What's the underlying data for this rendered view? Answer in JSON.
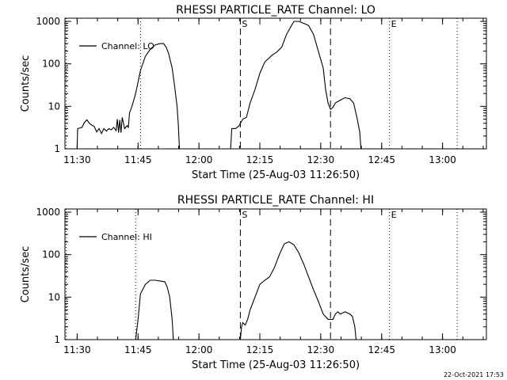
{
  "footer_stamp": "22-Oct-2021 17:53",
  "chart_data": [
    {
      "type": "line",
      "title": "RHESSI PARTICLE_RATE Channel: LO",
      "xlabel": "Start Time (25-Aug-03 11:26:50)",
      "ylabel": "Counts/sec",
      "yscale": "log",
      "ylim": [
        1,
        1000
      ],
      "xlim": [
        11.45,
        13.18
      ],
      "x_unit": "hours",
      "x_ticks": [
        {
          "x": 11.5,
          "label": "11:30"
        },
        {
          "x": 11.75,
          "label": "11:45"
        },
        {
          "x": 12.0,
          "label": "12:00"
        },
        {
          "x": 12.25,
          "label": "12:15"
        },
        {
          "x": 12.5,
          "label": "12:30"
        },
        {
          "x": 12.75,
          "label": "12:45"
        },
        {
          "x": 13.0,
          "label": "13:00"
        }
      ],
      "y_ticks": [
        {
          "y": 1,
          "label": "1"
        },
        {
          "y": 10,
          "label": "10"
        },
        {
          "y": 100,
          "label": "100"
        },
        {
          "y": 1000,
          "label": "1000"
        }
      ],
      "legend": {
        "label": "Channel: LO",
        "position": "top-left"
      },
      "markers": [
        {
          "x": 12.17,
          "label": "S",
          "style": "dashed"
        },
        {
          "x": 12.54,
          "label": "",
          "style": "dashed"
        },
        {
          "x": 12.782,
          "label": "E",
          "style": "dotted"
        }
      ],
      "extra_lines": [
        {
          "x": 11.455,
          "style": "dotted"
        },
        {
          "x": 11.76,
          "style": "dotted"
        },
        {
          "x": 13.06,
          "style": "dotted"
        }
      ],
      "series": [
        {
          "name": "Channel: LO",
          "points": [
            [
              11.5,
              1.0
            ],
            [
              11.502,
              3.0
            ],
            [
              11.52,
              3.2
            ],
            [
              11.53,
              4.2
            ],
            [
              11.54,
              4.8
            ],
            [
              11.55,
              4.0
            ],
            [
              11.56,
              3.6
            ],
            [
              11.57,
              3.4
            ],
            [
              11.58,
              2.5
            ],
            [
              11.59,
              3.0
            ],
            [
              11.6,
              2.3
            ],
            [
              11.61,
              3.0
            ],
            [
              11.62,
              2.6
            ],
            [
              11.63,
              3.0
            ],
            [
              11.64,
              2.8
            ],
            [
              11.65,
              3.2
            ],
            [
              11.66,
              2.7
            ],
            [
              11.665,
              5.0
            ],
            [
              11.67,
              2.4
            ],
            [
              11.675,
              4.8
            ],
            [
              11.68,
              2.4
            ],
            [
              11.685,
              5.5
            ],
            [
              11.695,
              3.0
            ],
            [
              11.705,
              3.5
            ],
            [
              11.71,
              3.2
            ],
            [
              11.715,
              7.0
            ],
            [
              11.725,
              10.0
            ],
            [
              11.74,
              20.0
            ],
            [
              11.76,
              70.0
            ],
            [
              11.78,
              150.0
            ],
            [
              11.8,
              220.0
            ],
            [
              11.82,
              280.0
            ],
            [
              11.84,
              300.0
            ],
            [
              11.855,
              300.0
            ],
            [
              11.865,
              250.0
            ],
            [
              11.875,
              180.0
            ],
            [
              11.89,
              80.0
            ],
            [
              11.9,
              30.0
            ],
            [
              11.91,
              10.0
            ],
            [
              11.915,
              4.0
            ],
            [
              11.92,
              1.0
            ],
            [
              12.13,
              1.0
            ],
            [
              12.135,
              3.0
            ],
            [
              12.15,
              3.0
            ],
            [
              12.165,
              3.5
            ],
            [
              12.17,
              4.0
            ],
            [
              12.18,
              5.0
            ],
            [
              12.195,
              5.5
            ],
            [
              12.21,
              12.0
            ],
            [
              12.23,
              25.0
            ],
            [
              12.25,
              60.0
            ],
            [
              12.27,
              110.0
            ],
            [
              12.3,
              160.0
            ],
            [
              12.32,
              190.0
            ],
            [
              12.34,
              250.0
            ],
            [
              12.36,
              500.0
            ],
            [
              12.38,
              800.0
            ],
            [
              12.39,
              1000.0
            ],
            [
              12.41,
              1000.0
            ],
            [
              12.43,
              900.0
            ],
            [
              12.45,
              800.0
            ],
            [
              12.47,
              500.0
            ],
            [
              12.49,
              200.0
            ],
            [
              12.51,
              80.0
            ],
            [
              12.52,
              25.0
            ],
            [
              12.53,
              12.0
            ],
            [
              12.54,
              8.5
            ],
            [
              12.55,
              9.5
            ],
            [
              12.56,
              12.0
            ],
            [
              12.58,
              14.0
            ],
            [
              12.6,
              16.0
            ],
            [
              12.62,
              15.0
            ],
            [
              12.635,
              12.0
            ],
            [
              12.65,
              5.0
            ],
            [
              12.66,
              2.5
            ],
            [
              12.665,
              1.0
            ]
          ]
        }
      ]
    },
    {
      "type": "line",
      "title": "RHESSI PARTICLE_RATE Channel: HI",
      "xlabel": "Start Time (25-Aug-03 11:26:50)",
      "ylabel": "Counts/sec",
      "yscale": "log",
      "ylim": [
        1,
        1000
      ],
      "xlim": [
        11.45,
        13.18
      ],
      "x_unit": "hours",
      "x_ticks": [
        {
          "x": 11.5,
          "label": "11:30"
        },
        {
          "x": 11.75,
          "label": "11:45"
        },
        {
          "x": 12.0,
          "label": "12:00"
        },
        {
          "x": 12.25,
          "label": "12:15"
        },
        {
          "x": 12.5,
          "label": "12:30"
        },
        {
          "x": 12.75,
          "label": "12:45"
        },
        {
          "x": 13.0,
          "label": "13:00"
        }
      ],
      "y_ticks": [
        {
          "y": 1,
          "label": "1"
        },
        {
          "y": 10,
          "label": "10"
        },
        {
          "y": 100,
          "label": "100"
        },
        {
          "y": 1000,
          "label": "1000"
        }
      ],
      "legend": {
        "label": "Channel: HI",
        "position": "top-left"
      },
      "markers": [
        {
          "x": 12.17,
          "label": "S",
          "style": "dashed"
        },
        {
          "x": 12.54,
          "label": "",
          "style": "dashed"
        },
        {
          "x": 12.782,
          "label": "E",
          "style": "dotted"
        }
      ],
      "extra_lines": [
        {
          "x": 11.455,
          "style": "dotted"
        },
        {
          "x": 11.74,
          "style": "dotted"
        },
        {
          "x": 13.06,
          "style": "dotted"
        }
      ],
      "series": [
        {
          "name": "Channel: HI",
          "points": [
            [
              11.74,
              1.0
            ],
            [
              11.75,
              3.0
            ],
            [
              11.76,
              12.0
            ],
            [
              11.78,
              20.0
            ],
            [
              11.8,
              25.0
            ],
            [
              11.82,
              25.0
            ],
            [
              11.84,
              24.0
            ],
            [
              11.86,
              23.0
            ],
            [
              11.87,
              17.0
            ],
            [
              11.88,
              10.0
            ],
            [
              11.89,
              3.0
            ],
            [
              11.895,
              1.0
            ],
            [
              12.17,
              1.0
            ],
            [
              12.175,
              2.0
            ],
            [
              12.18,
              2.5
            ],
            [
              12.19,
              2.2
            ],
            [
              12.2,
              3.0
            ],
            [
              12.21,
              5.0
            ],
            [
              12.23,
              10.0
            ],
            [
              12.25,
              20.0
            ],
            [
              12.27,
              25.0
            ],
            [
              12.29,
              30.0
            ],
            [
              12.31,
              50.0
            ],
            [
              12.33,
              100.0
            ],
            [
              12.35,
              180.0
            ],
            [
              12.37,
              200.0
            ],
            [
              12.39,
              170.0
            ],
            [
              12.41,
              110.0
            ],
            [
              12.43,
              60.0
            ],
            [
              12.45,
              30.0
            ],
            [
              12.47,
              15.0
            ],
            [
              12.49,
              8.0
            ],
            [
              12.51,
              4.0
            ],
            [
              12.53,
              3.0
            ],
            [
              12.55,
              3.0
            ],
            [
              12.56,
              4.0
            ],
            [
              12.57,
              4.5
            ],
            [
              12.58,
              4.0
            ],
            [
              12.6,
              4.5
            ],
            [
              12.62,
              4.0
            ],
            [
              12.63,
              3.5
            ],
            [
              12.64,
              2.0
            ],
            [
              12.645,
              1.0
            ]
          ]
        }
      ]
    }
  ]
}
